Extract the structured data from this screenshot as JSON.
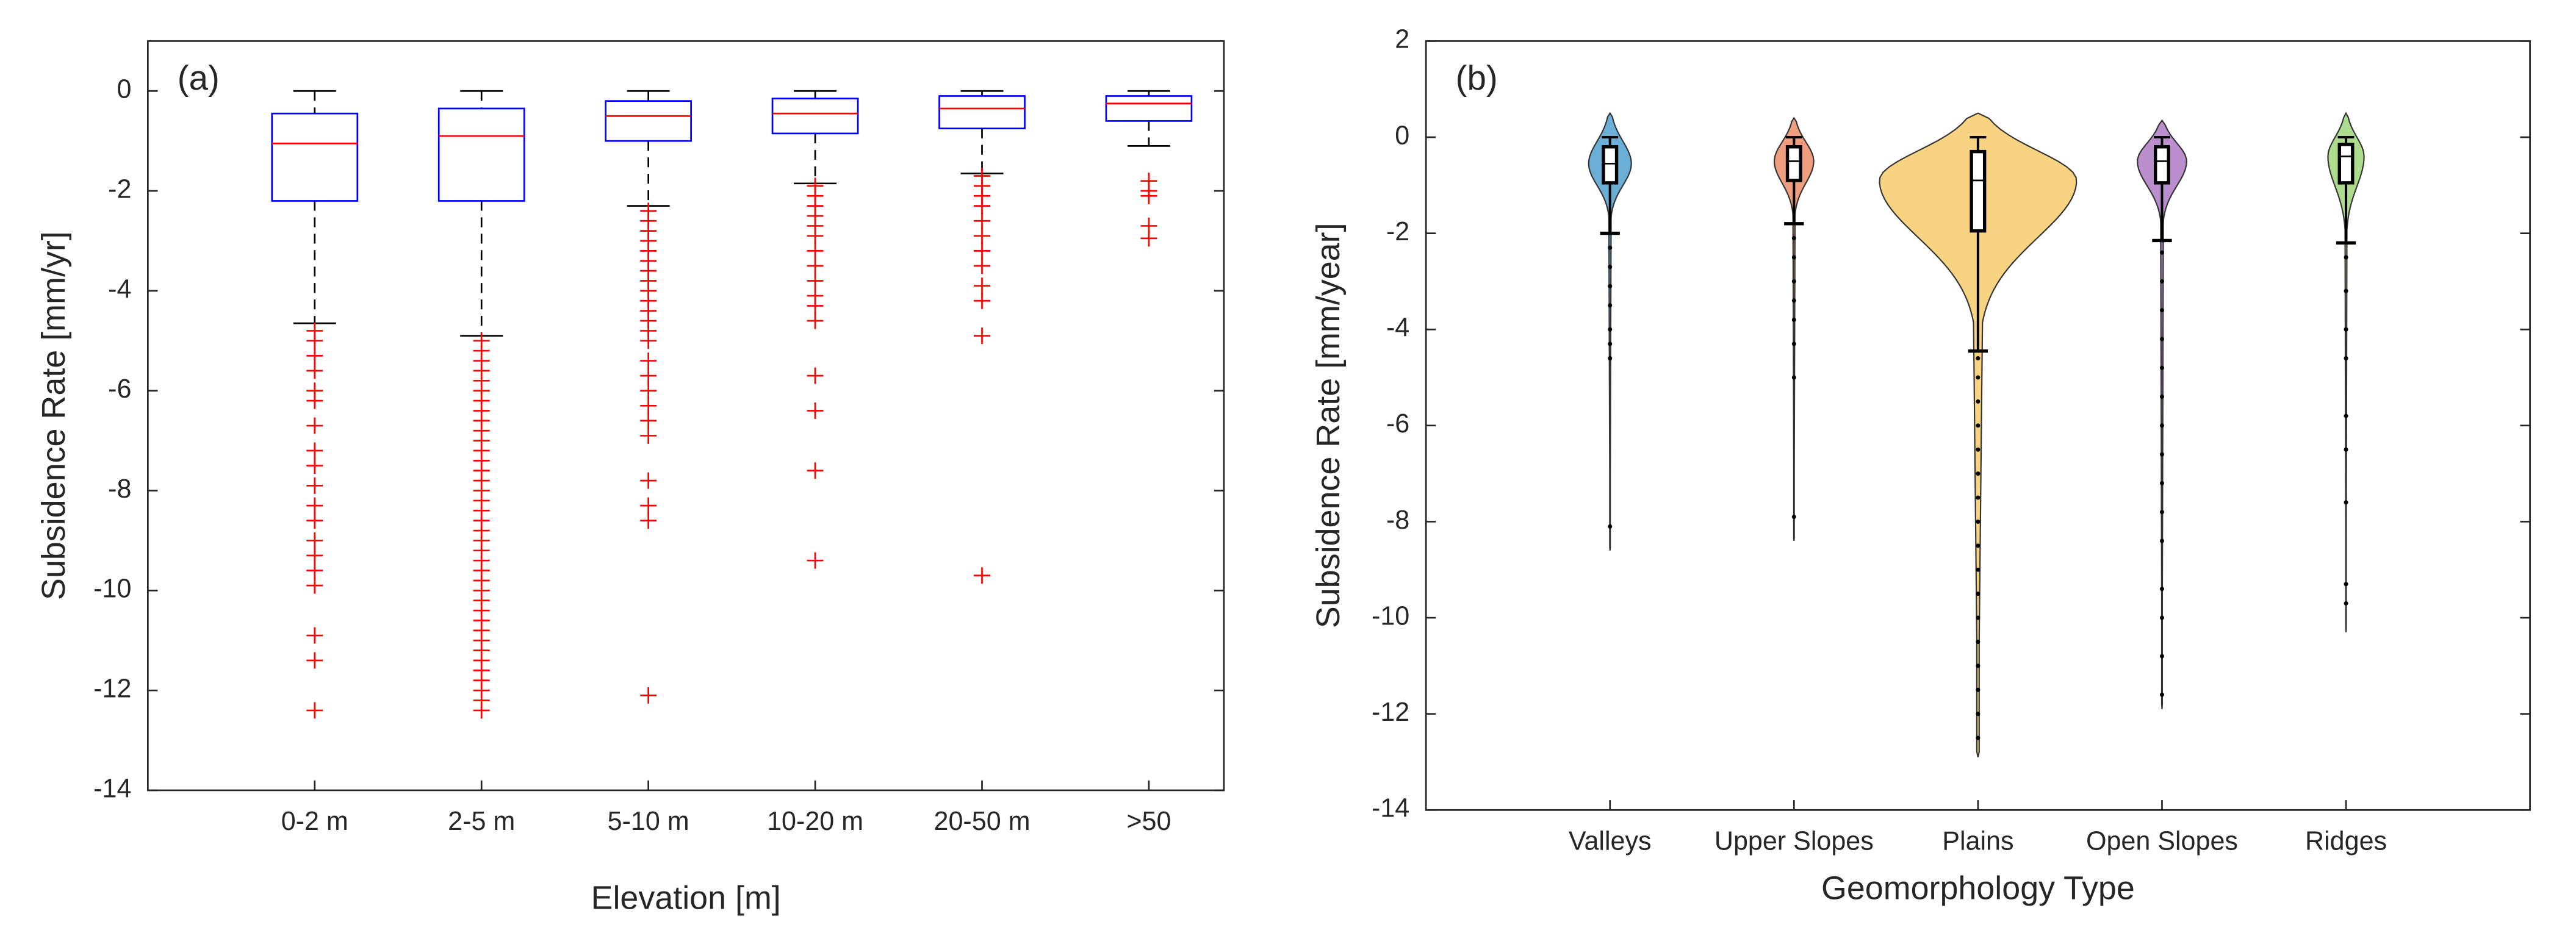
{
  "chart_data": [
    {
      "type": "box",
      "annotation": "(a)",
      "y_label": "Subsidence Rate [mm/yr]",
      "x_label": "Elevation [m]",
      "categories": [
        "0-2 m",
        "2-5 m",
        "5-10 m",
        "10-20 m",
        "20-50 m",
        ">50"
      ],
      "ylim": [
        -14,
        1
      ],
      "yticks": [
        0,
        -2,
        -4,
        -6,
        -8,
        -10,
        -12,
        -14
      ],
      "box_color": "#0000ff",
      "median_color": "#ff0000",
      "outlier_color": "#ff0000",
      "boxes": [
        {
          "max": 0,
          "q3": -0.45,
          "median": -1.05,
          "q1": -2.2,
          "min": -4.65,
          "outliers": [
            -4.8,
            -5.0,
            -5.3,
            -5.6,
            -6.0,
            -6.2,
            -6.7,
            -7.2,
            -7.5,
            -7.9,
            -8.3,
            -8.6,
            -9.0,
            -9.3,
            -9.6,
            -9.9,
            -10.9,
            -11.4,
            -12.4
          ]
        },
        {
          "max": 0,
          "q3": -0.35,
          "median": -0.9,
          "q1": -2.2,
          "min": -4.9,
          "outliers": [
            -5.0,
            -5.2,
            -5.4,
            -5.6,
            -5.8,
            -6.0,
            -6.2,
            -6.4,
            -6.6,
            -6.8,
            -7.0,
            -7.2,
            -7.4,
            -7.6,
            -7.8,
            -8.0,
            -8.2,
            -8.4,
            -8.6,
            -8.8,
            -9.0,
            -9.2,
            -9.4,
            -9.6,
            -9.8,
            -10.0,
            -10.2,
            -10.4,
            -10.6,
            -10.8,
            -11.0,
            -11.2,
            -11.4,
            -11.6,
            -11.8,
            -12.0,
            -12.2,
            -12.4
          ]
        },
        {
          "max": 0,
          "q3": -0.2,
          "median": -0.5,
          "q1": -1.0,
          "min": -2.3,
          "outliers": [
            -2.4,
            -2.6,
            -2.8,
            -3.0,
            -3.2,
            -3.4,
            -3.6,
            -3.8,
            -4.0,
            -4.2,
            -4.4,
            -4.6,
            -4.8,
            -5.0,
            -5.4,
            -5.7,
            -6.0,
            -6.3,
            -6.6,
            -6.9,
            -7.8,
            -8.3,
            -8.6,
            -12.1
          ]
        },
        {
          "max": 0,
          "q3": -0.15,
          "median": -0.45,
          "q1": -0.85,
          "min": -1.85,
          "outliers": [
            -1.9,
            -2.1,
            -2.3,
            -2.5,
            -2.7,
            -2.9,
            -3.2,
            -3.5,
            -3.8,
            -4.1,
            -4.3,
            -4.6,
            -5.7,
            -6.4,
            -7.6,
            -9.4
          ]
        },
        {
          "max": 0,
          "q3": -0.1,
          "median": -0.35,
          "q1": -0.75,
          "min": -1.65,
          "outliers": [
            -1.7,
            -1.9,
            -2.1,
            -2.3,
            -2.6,
            -2.9,
            -3.2,
            -3.5,
            -3.9,
            -4.2,
            -4.9,
            -9.7
          ]
        },
        {
          "max": 0,
          "q3": -0.1,
          "median": -0.25,
          "q1": -0.6,
          "min": -1.1,
          "outliers": [
            -1.8,
            -2.0,
            -2.1,
            -2.7,
            -2.95
          ]
        }
      ]
    },
    {
      "type": "violin",
      "annotation": "(b)",
      "y_label": "Subsidence  Rate [mm/year]",
      "x_label": "Geomorphology Type",
      "categories": [
        "Valleys",
        "Upper Slopes",
        "Plains",
        "Open Slopes",
        "Ridges"
      ],
      "ylim": [
        -14,
        2
      ],
      "yticks": [
        2,
        0,
        -2,
        -4,
        -6,
        -8,
        -10,
        -12,
        -14
      ],
      "violins": [
        {
          "color": "#6baed6",
          "top": 0.5,
          "bottom": -8.6,
          "max": 0,
          "q3": -0.2,
          "median": -0.55,
          "q1": -0.95,
          "min": -2.0,
          "outliers": [
            -2.3,
            -2.7,
            -3.1,
            -3.5,
            -4.0,
            -4.3,
            -4.6,
            -8.1
          ]
        },
        {
          "color": "#ef9f7f",
          "top": 0.4,
          "bottom": -8.4,
          "max": 0,
          "q3": -0.2,
          "median": -0.5,
          "q1": -0.9,
          "min": -1.8,
          "outliers": [
            -2.1,
            -2.5,
            -3.0,
            -3.4,
            -3.8,
            -4.3,
            -5.0,
            -7.9
          ]
        },
        {
          "color": "#f7d382",
          "top": 0.5,
          "bottom": -12.9,
          "max": 0,
          "q3": -0.3,
          "median": -0.9,
          "q1": -1.95,
          "min": -4.45,
          "outliers": [
            -4.6,
            -5.0,
            -5.5,
            -6.0,
            -6.5,
            -7.0,
            -7.5,
            -8.0,
            -8.5,
            -9.0,
            -9.5,
            -10.0,
            -10.5,
            -11.0,
            -11.5,
            -12.0,
            -12.5
          ]
        },
        {
          "color": "#bb8fce",
          "top": 0.35,
          "bottom": -11.9,
          "max": 0,
          "q3": -0.2,
          "median": -0.5,
          "q1": -0.95,
          "min": -2.15,
          "outliers": [
            -2.4,
            -3.0,
            -3.6,
            -4.2,
            -4.8,
            -5.4,
            -6.0,
            -6.6,
            -7.2,
            -7.8,
            -8.4,
            -9.4,
            -10.0,
            -10.8,
            -11.6
          ]
        },
        {
          "color": "#addc8e",
          "top": 0.5,
          "bottom": -10.3,
          "max": 0,
          "q3": -0.15,
          "median": -0.4,
          "q1": -0.95,
          "min": -2.2,
          "outliers": [
            -2.5,
            -3.2,
            -4.0,
            -4.6,
            -5.8,
            -6.5,
            -7.6,
            -9.3,
            -9.7
          ]
        }
      ]
    }
  ]
}
